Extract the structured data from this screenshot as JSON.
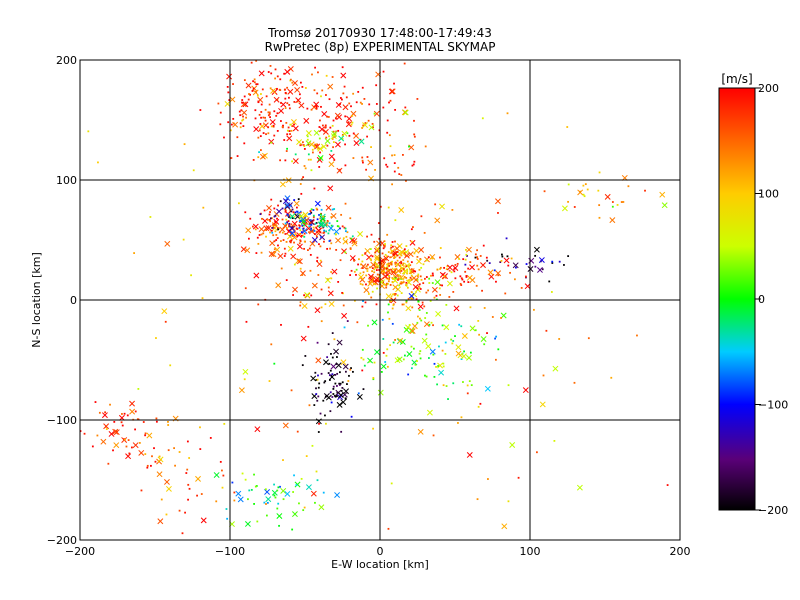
{
  "chart_data": {
    "type": "scatter",
    "title": "Tromsø 20170930 17:48:00-17:49:43",
    "subtitle": "RwPretec (8p) EXPERIMENTAL SKYMAP",
    "xlabel": "E-W location [km]",
    "ylabel": "N-S location [km]",
    "xlim": [
      -200,
      200
    ],
    "ylim": [
      -200,
      200
    ],
    "xticks": [
      -200,
      -100,
      0,
      100,
      200
    ],
    "yticks": [
      -200,
      -100,
      0,
      100,
      200
    ],
    "grid": true,
    "colorbar": {
      "label": "[m/s]",
      "range": [
        -200,
        200
      ],
      "ticks": [
        200,
        100,
        0,
        -100,
        -200
      ],
      "colormap": "rainbow (black-purple-blue-cyan-green-yellow-orange-red)"
    },
    "marker_types": [
      "dot",
      "cross"
    ],
    "clusters": [
      {
        "x": -20,
        "y": 25,
        "sx": 28,
        "sy": 22,
        "v": 170,
        "n": 140
      },
      {
        "x": 5,
        "y": 30,
        "sx": 10,
        "sy": 10,
        "v": 130,
        "n": 160
      },
      {
        "x": 15,
        "y": 15,
        "sx": 12,
        "sy": 12,
        "v": 110,
        "n": 120
      },
      {
        "x": -60,
        "y": 60,
        "sx": 14,
        "sy": 10,
        "v": 175,
        "n": 180
      },
      {
        "x": -55,
        "y": 68,
        "sx": 10,
        "sy": 8,
        "v": -120,
        "n": 60
      },
      {
        "x": -38,
        "y": 62,
        "sx": 10,
        "sy": 8,
        "v": -30,
        "n": 45
      },
      {
        "x": -75,
        "y": 165,
        "sx": 18,
        "sy": 15,
        "v": 180,
        "n": 130
      },
      {
        "x": -35,
        "y": 145,
        "sx": 30,
        "sy": 25,
        "v": 190,
        "n": 200
      },
      {
        "x": -35,
        "y": 130,
        "sx": 20,
        "sy": 10,
        "v": 50,
        "n": 45
      },
      {
        "x": -30,
        "y": -70,
        "sx": 8,
        "sy": 20,
        "v": -195,
        "n": 90
      },
      {
        "x": 30,
        "y": -40,
        "sx": 25,
        "sy": 20,
        "v": 20,
        "n": 110
      },
      {
        "x": 55,
        "y": 25,
        "sx": 20,
        "sy": 10,
        "v": 170,
        "n": 90
      },
      {
        "x": 90,
        "y": 30,
        "sx": 20,
        "sy": 8,
        "v": -180,
        "n": 30
      },
      {
        "x": 140,
        "y": 90,
        "sx": 20,
        "sy": 10,
        "v": 110,
        "n": 25
      },
      {
        "x": -170,
        "y": -110,
        "sx": 15,
        "sy": 15,
        "v": 185,
        "n": 60
      },
      {
        "x": -70,
        "y": -165,
        "sx": 20,
        "sy": 12,
        "v": -20,
        "n": 50
      },
      {
        "x": -130,
        "y": -150,
        "sx": 20,
        "sy": 20,
        "v": 160,
        "n": 35
      },
      {
        "x": 0,
        "y": -10,
        "sx": 90,
        "sy": 100,
        "v": 120,
        "n": 180
      }
    ]
  }
}
